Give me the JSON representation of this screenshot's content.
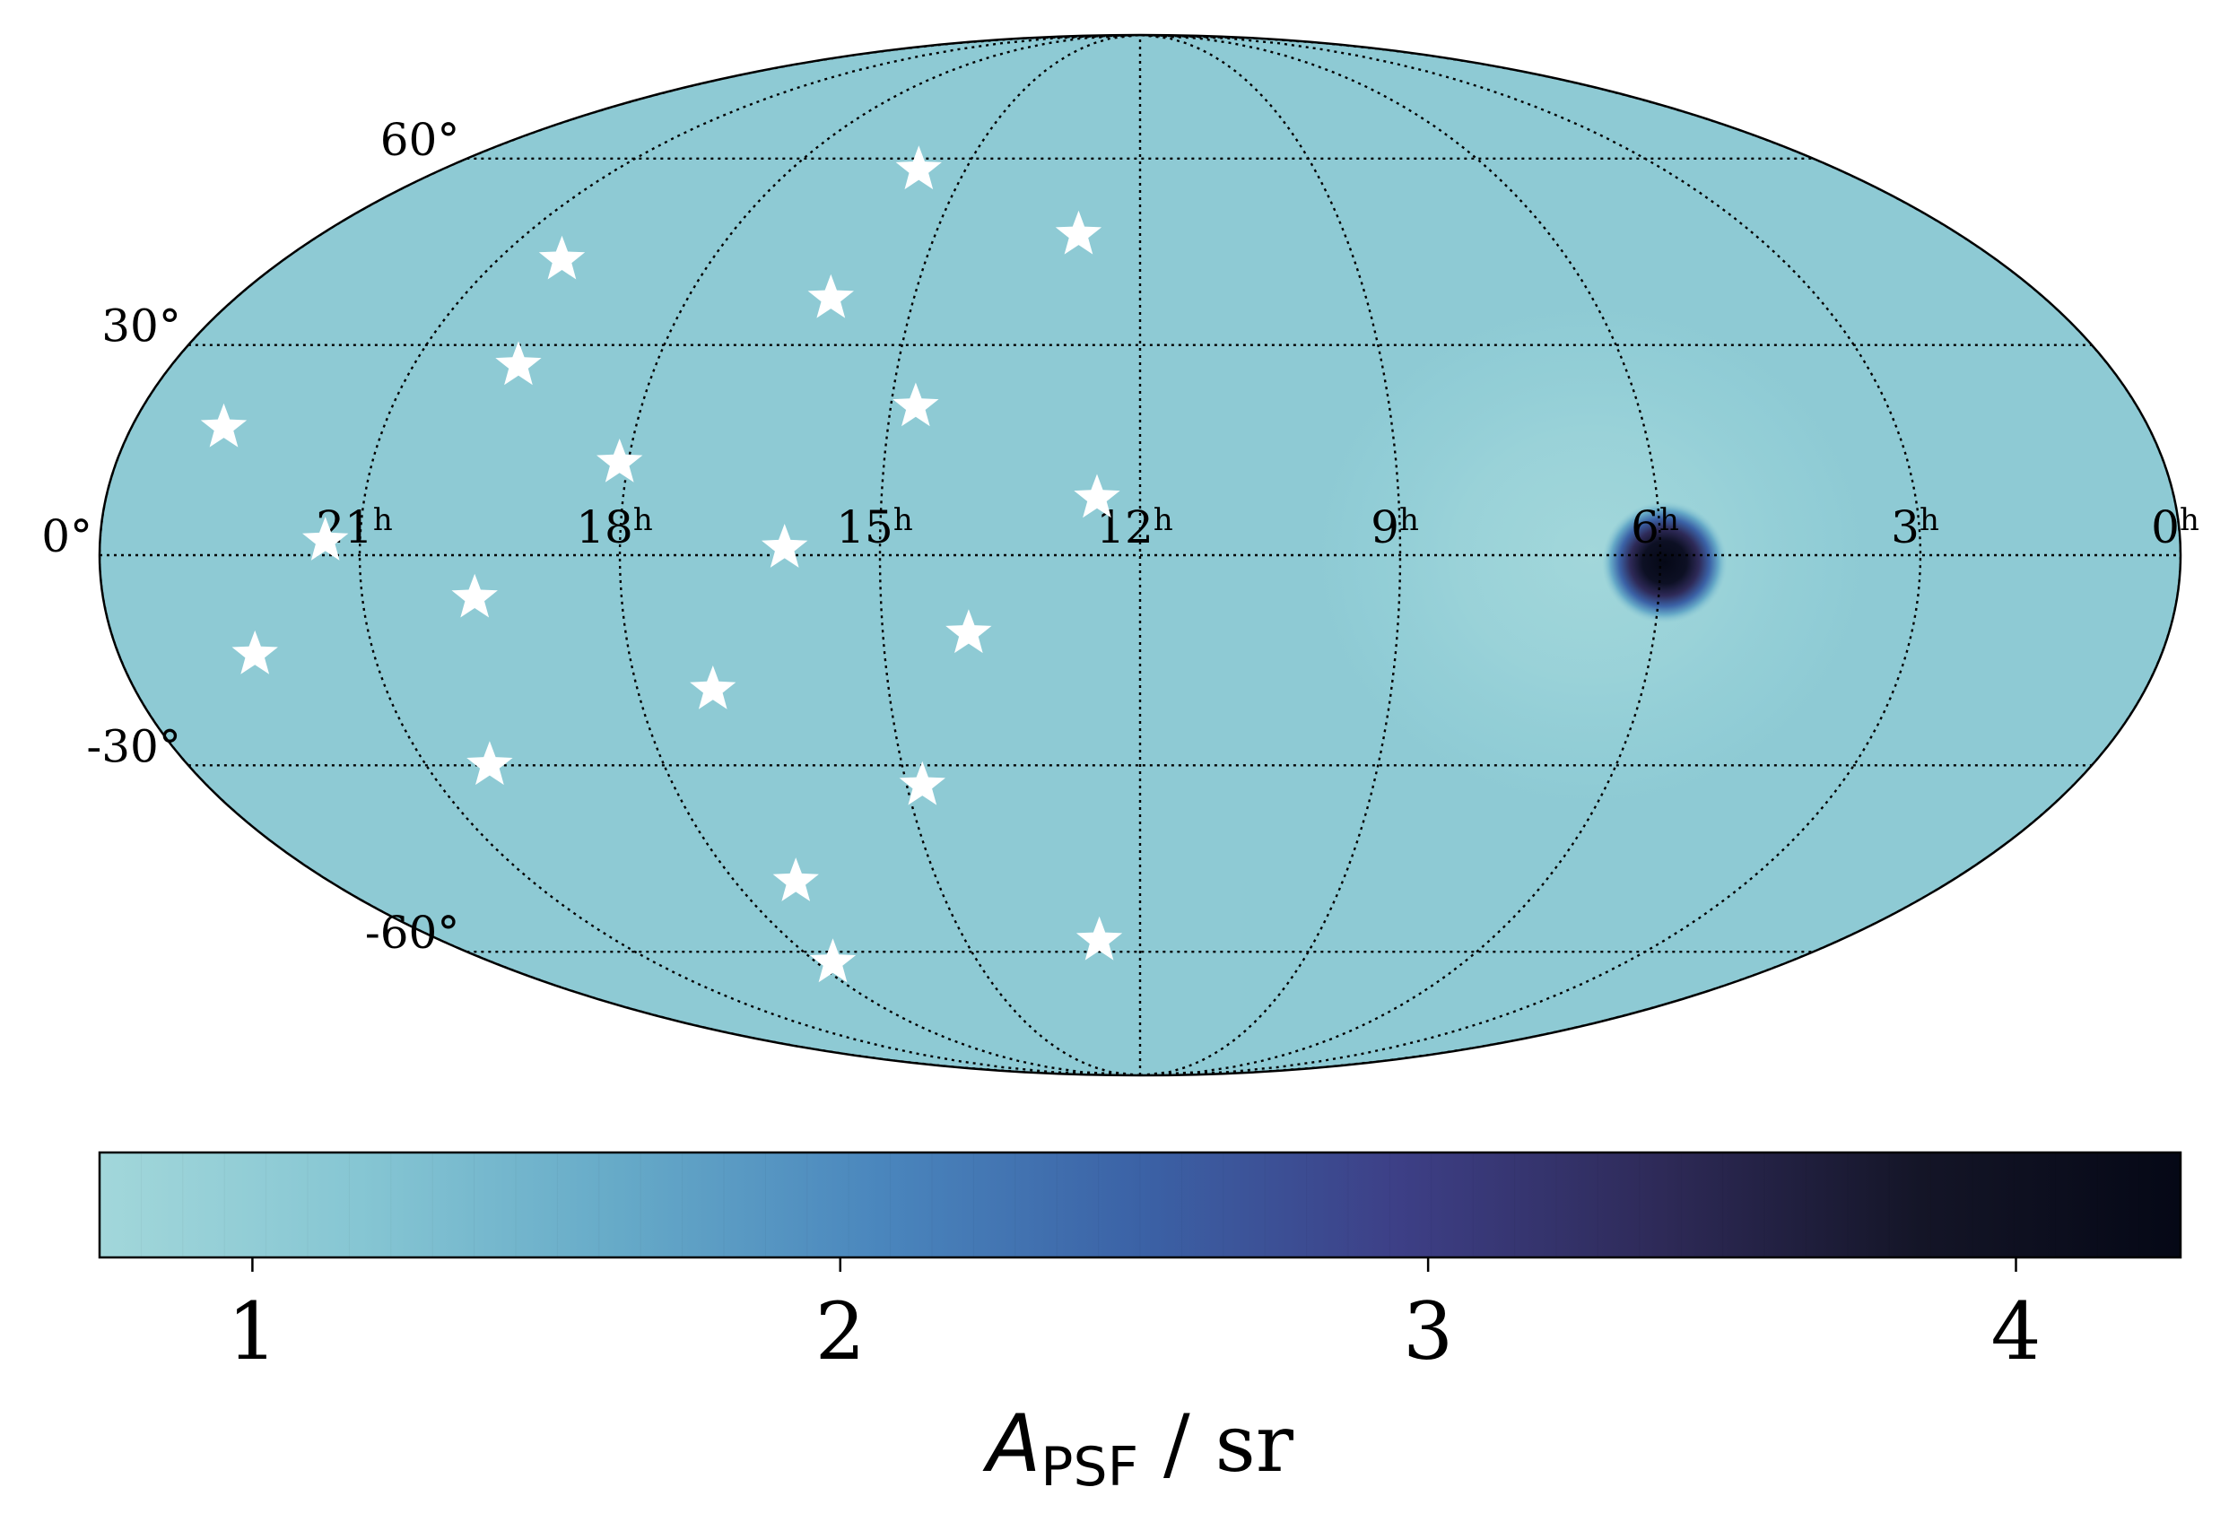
{
  "chart_data": {
    "type": "heatmap",
    "projection": "mollweide",
    "title": "",
    "colorbar": {
      "label_main": "A",
      "label_sub": "PSF",
      "label_unit": " / sr",
      "range": [
        0.74,
        4.28
      ],
      "ticks": [
        1,
        2,
        3,
        4
      ],
      "tick_labels": [
        "1",
        "2",
        "3",
        "4"
      ],
      "colors": [
        "#a2d7da",
        "#86c6d3",
        "#66aac8",
        "#4a86bd",
        "#3b62a6",
        "#3d3f86",
        "#2e2a58",
        "#141527",
        "#050816"
      ]
    },
    "ra_ticks": [
      {
        "label": "21",
        "ra_h": 21
      },
      {
        "label": "18",
        "ra_h": 18
      },
      {
        "label": "15",
        "ra_h": 15
      },
      {
        "label": "12",
        "ra_h": 12
      },
      {
        "label": "9",
        "ra_h": 9
      },
      {
        "label": "6",
        "ra_h": 6
      },
      {
        "label": "3",
        "ra_h": 3
      },
      {
        "label": "0",
        "ra_h": 0
      }
    ],
    "ra_unit": "h",
    "dec_ticks": [
      {
        "label": "60°",
        "dec": 60
      },
      {
        "label": "30°",
        "dec": 30
      },
      {
        "label": "0°",
        "dec": 0
      },
      {
        "label": "-30°",
        "dec": -30
      },
      {
        "label": "-60°",
        "dec": -60
      }
    ],
    "field": {
      "background_value": 0.92,
      "background_color": "#8ecad4",
      "peak": {
        "ra_h": 5.95,
        "dec": -1.0,
        "value": 4.28
      },
      "halo": {
        "ra_h": 6.8,
        "dec": 0.0,
        "value": 0.78
      }
    },
    "markers": {
      "symbol": "star",
      "color": "#ffffff",
      "points": [
        {
          "ra_h": 22.9,
          "dec": 18
        },
        {
          "ra_h": 20.1,
          "dec": 43
        },
        {
          "ra_h": 19.7,
          "dec": 27
        },
        {
          "ra_h": 21.4,
          "dec": 2
        },
        {
          "ra_h": 22.4,
          "dec": -14
        },
        {
          "ra_h": 19.7,
          "dec": -6
        },
        {
          "ra_h": 18.1,
          "dec": 13
        },
        {
          "ra_h": 16.1,
          "dec": 37
        },
        {
          "ra_h": 16.1,
          "dec": 1
        },
        {
          "ra_h": 15.8,
          "dec": 58
        },
        {
          "ra_h": 14.7,
          "dec": 21
        },
        {
          "ra_h": 12.9,
          "dec": 47
        },
        {
          "ra_h": 12.5,
          "dec": 8
        },
        {
          "ra_h": 14.0,
          "dec": -11
        },
        {
          "ra_h": 17.1,
          "dec": -19
        },
        {
          "ra_h": 20.2,
          "dec": -30
        },
        {
          "ra_h": 14.8,
          "dec": -33
        },
        {
          "ra_h": 17.1,
          "dec": -48
        },
        {
          "ra_h": 12.7,
          "dec": -58
        },
        {
          "ra_h": 17.7,
          "dec": -62
        }
      ]
    }
  }
}
